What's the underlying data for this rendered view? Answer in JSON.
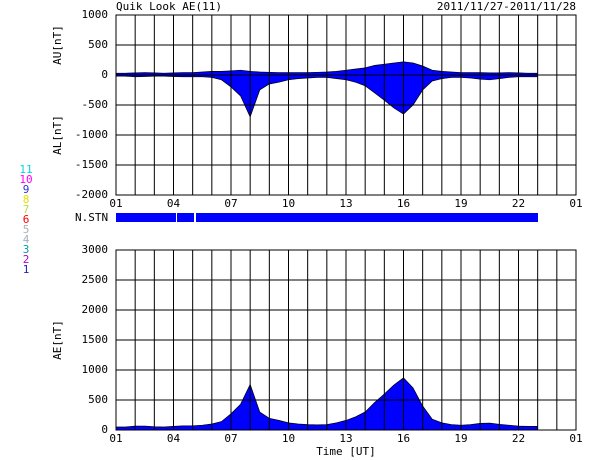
{
  "title": "Quik Look AE(11)",
  "date_range": "2011/11/27-2011/11/28",
  "station_legend": [
    {
      "label": "11",
      "color": "#00d8d8"
    },
    {
      "label": "10",
      "color": "#ff00ff"
    },
    {
      "label": "9",
      "color": "#3030e0"
    },
    {
      "label": "8",
      "color": "#e8e000"
    },
    {
      "label": "7",
      "color": "#b8e040"
    },
    {
      "label": "6",
      "color": "#ff0000"
    },
    {
      "label": "5",
      "color": "#b0b0b0"
    },
    {
      "label": "4",
      "color": "#a0b0c0"
    },
    {
      "label": "3",
      "color": "#00a0a0"
    },
    {
      "label": "2",
      "color": "#c000c0"
    },
    {
      "label": "1",
      "color": "#2020c0"
    }
  ],
  "station_bar": {
    "label": "N.STN",
    "color": "#0000ff"
  },
  "chart_data": [
    {
      "type": "area",
      "ylabels": [
        "AU[nT]",
        "AL[nT]"
      ],
      "x": [
        0,
        0.5,
        1,
        1.5,
        2,
        2.5,
        3,
        3.5,
        4,
        4.5,
        5,
        5.5,
        6,
        6.5,
        7,
        7.5,
        8,
        8.5,
        9,
        9.5,
        10,
        10.5,
        11,
        11.5,
        12,
        12.5,
        13,
        13.5,
        14,
        14.5,
        15,
        15.5,
        16,
        16.5,
        17,
        17.5,
        18,
        18.5,
        19,
        19.5,
        20,
        20.5,
        21,
        21.5,
        22
      ],
      "series": [
        {
          "color": "#0000ff",
          "values": [
            30,
            30,
            35,
            40,
            35,
            30,
            35,
            40,
            40,
            50,
            60,
            60,
            70,
            80,
            60,
            50,
            45,
            40,
            40,
            40,
            40,
            45,
            50,
            60,
            80,
            100,
            120,
            160,
            180,
            200,
            220,
            200,
            150,
            80,
            60,
            50,
            40,
            40,
            40,
            35,
            35,
            40,
            35,
            30,
            30
          ]
        },
        {
          "color": "#0000ff",
          "values": [
            -20,
            -20,
            -30,
            -25,
            -20,
            -20,
            -25,
            -30,
            -30,
            -30,
            -40,
            -80,
            -200,
            -350,
            -700,
            -250,
            -150,
            -120,
            -80,
            -60,
            -50,
            -40,
            -40,
            -60,
            -80,
            -120,
            -180,
            -300,
            -420,
            -550,
            -650,
            -500,
            -250,
            -100,
            -60,
            -40,
            -40,
            -50,
            -70,
            -80,
            -60,
            -40,
            -30,
            -30,
            -30
          ]
        }
      ],
      "xlim": [
        0,
        24
      ],
      "xticks": [
        {
          "value": 0,
          "label": "01"
        },
        {
          "value": 3,
          "label": "04"
        },
        {
          "value": 6,
          "label": "07"
        },
        {
          "value": 9,
          "label": "10"
        },
        {
          "value": 12,
          "label": "13"
        },
        {
          "value": 15,
          "label": "16"
        },
        {
          "value": 18,
          "label": "19"
        },
        {
          "value": 21,
          "label": "22"
        },
        {
          "value": 24,
          "label": "01"
        }
      ],
      "xgrid_interval": 1,
      "ylim": [
        -2000,
        1000
      ],
      "yticks": [
        1000,
        500,
        0,
        -500,
        -1000,
        -1500,
        -2000
      ],
      "grid": true
    },
    {
      "type": "area",
      "ylabel": "AE[nT]",
      "xlabel": "Time [UT]",
      "x": [
        0,
        0.5,
        1,
        1.5,
        2,
        2.5,
        3,
        3.5,
        4,
        4.5,
        5,
        5.5,
        6,
        6.5,
        7,
        7.5,
        8,
        8.5,
        9,
        9.5,
        10,
        10.5,
        11,
        11.5,
        12,
        12.5,
        13,
        13.5,
        14,
        14.5,
        15,
        15.5,
        16,
        16.5,
        17,
        17.5,
        18,
        18.5,
        19,
        19.5,
        20,
        20.5,
        21,
        21.5,
        22
      ],
      "series": [
        {
          "color": "#0000ff",
          "values": [
            50,
            50,
            65,
            65,
            55,
            50,
            60,
            70,
            70,
            80,
            100,
            140,
            270,
            430,
            760,
            300,
            195,
            160,
            120,
            100,
            90,
            85,
            90,
            120,
            160,
            220,
            300,
            460,
            600,
            750,
            870,
            700,
            400,
            180,
            120,
            90,
            80,
            90,
            110,
            115,
            95,
            80,
            65,
            60,
            60
          ]
        }
      ],
      "xlim": [
        0,
        24
      ],
      "xticks": [
        {
          "value": 0,
          "label": "01"
        },
        {
          "value": 3,
          "label": "04"
        },
        {
          "value": 6,
          "label": "07"
        },
        {
          "value": 9,
          "label": "10"
        },
        {
          "value": 12,
          "label": "13"
        },
        {
          "value": 15,
          "label": "16"
        },
        {
          "value": 18,
          "label": "19"
        },
        {
          "value": 21,
          "label": "22"
        },
        {
          "value": 24,
          "label": "01"
        }
      ],
      "xgrid_interval": 1,
      "ylim": [
        0,
        3000
      ],
      "yticks": [
        3000,
        2500,
        2000,
        1500,
        1000,
        500,
        0
      ],
      "grid": true
    }
  ]
}
